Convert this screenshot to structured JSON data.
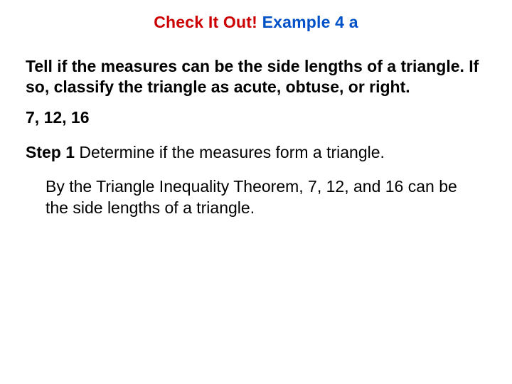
{
  "title": {
    "part1": "Check It Out!",
    "part2": "Example 4 a",
    "colors": {
      "part1": "#cc0000",
      "part2": "#0050c8"
    }
  },
  "prompt": "Tell if the measures can be the side lengths of a triangle. If so, classify the triangle as acute, obtuse, or right.",
  "values": "7, 12, 16",
  "step": {
    "label": "Step 1",
    "text": "Determine if the measures form a triangle."
  },
  "explanation": "By the Triangle Inequality Theorem, 7, 12, and 16 can be the side lengths of a triangle.",
  "style": {
    "background": "#ffffff",
    "font_family": "Verdana, Geneva, sans-serif",
    "title_fontsize": 23,
    "body_fontsize": 23,
    "text_color": "#000000"
  }
}
